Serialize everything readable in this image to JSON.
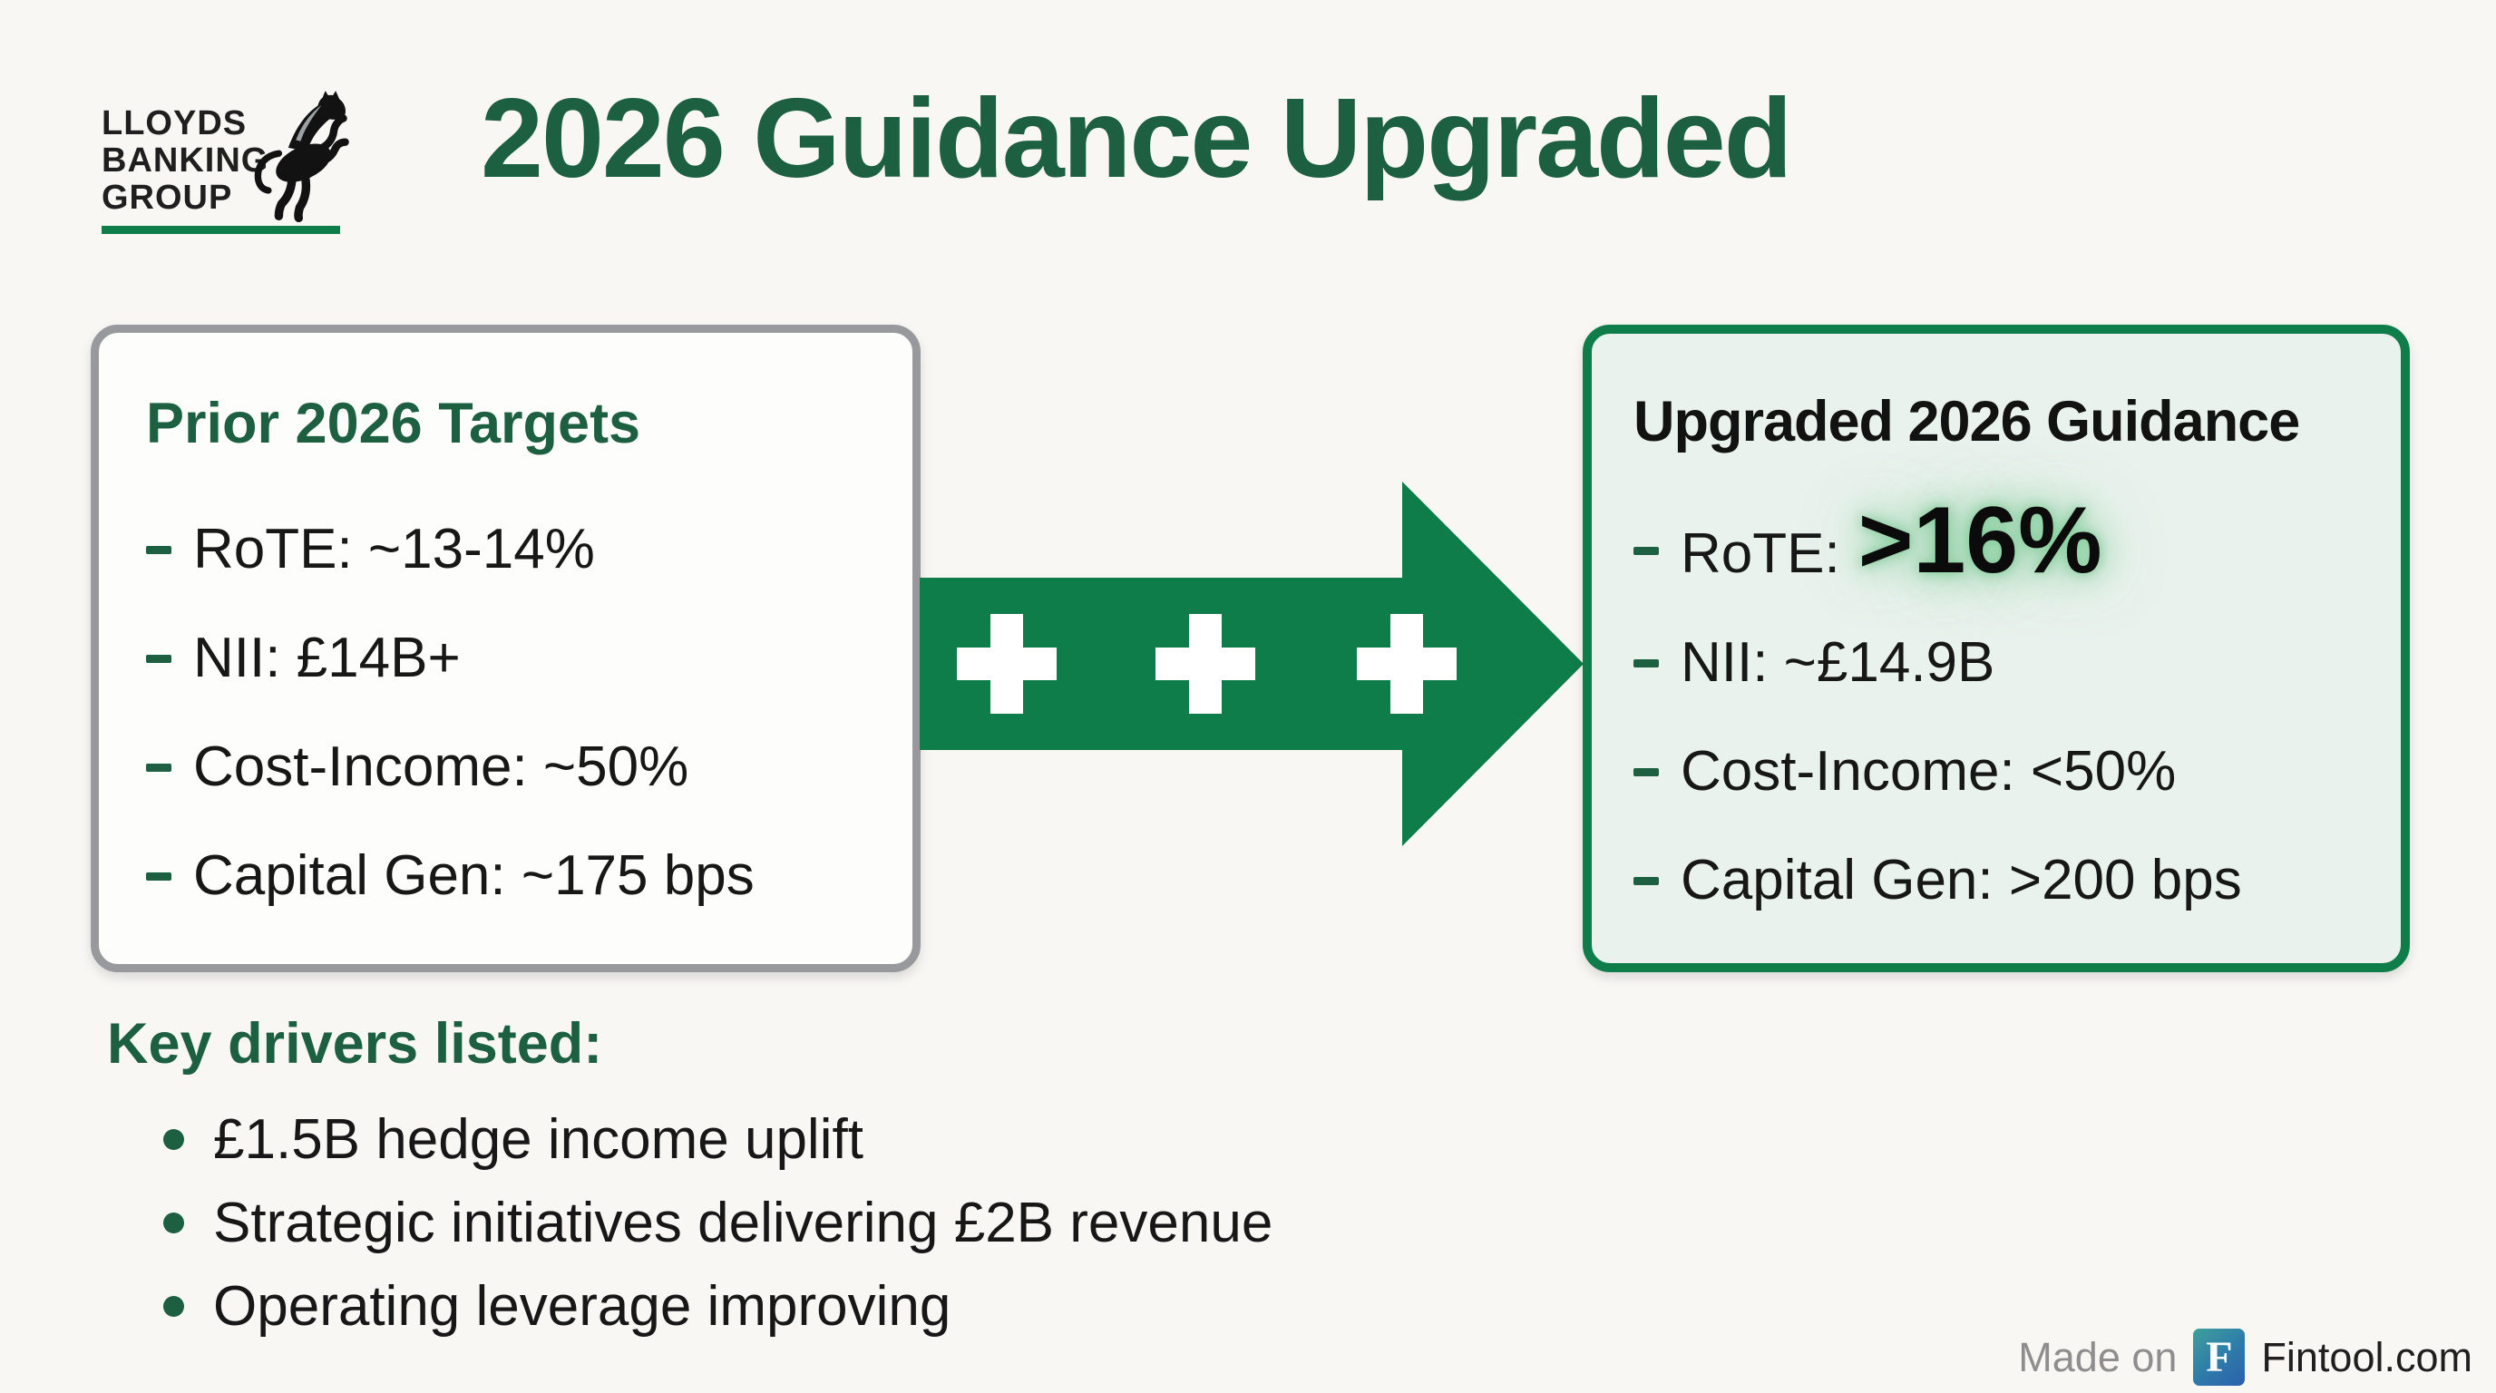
{
  "colors": {
    "accent_green": "#0f7d49",
    "dark_green": "#1d5f41",
    "light_green_bg": "#e9f2ec",
    "box_border_gray": "#97999c",
    "highlight_glow": "#7cca96",
    "footer_gray": "#8e8e8e",
    "badge_teal": "#3fa19a",
    "badge_blue": "#2b5fae"
  },
  "logo": {
    "lines": [
      "LLOYDS",
      "BANKING",
      "GROUP"
    ],
    "horse_icon": "lloyds-black-horse"
  },
  "header": {
    "title": "2026 Guidance Upgraded"
  },
  "prior_box": {
    "title": "Prior 2026 Targets",
    "items": [
      "RoTE: ~13-14%",
      "NII: £14B+",
      "Cost-Income: ~50%",
      "Capital Gen: ~175 bps"
    ]
  },
  "arrow": {
    "plus_count": 3
  },
  "upgraded_box": {
    "title": "Upgraded 2026 Guidance",
    "items": [
      {
        "label": "RoTE:",
        "value": ">16%",
        "highlight": true
      },
      {
        "label": "NII: ~£14.9B"
      },
      {
        "label": "Cost-Income: <50%"
      },
      {
        "label": "Capital Gen: >200 bps"
      }
    ]
  },
  "key_drivers": {
    "title": "Key drivers listed:",
    "items": [
      "£1.5B hedge income uplift",
      "Strategic initiatives delivering £2B revenue",
      "Operating leverage improving"
    ]
  },
  "footer": {
    "made_on": "Made on",
    "badge_letter": "F",
    "site": "Fintool.com"
  }
}
